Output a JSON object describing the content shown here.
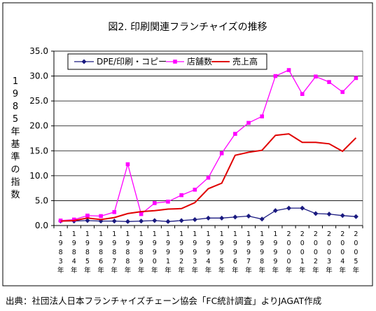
{
  "chart_data": {
    "type": "line",
    "title": "図2. 印刷関連フランチャイズの推移",
    "ylabel": "1985年基準の指数",
    "xlabel": "",
    "ylim": [
      0,
      35
    ],
    "yticks": [
      "0.0",
      "5.0",
      "10.0",
      "15.0",
      "20.0",
      "25.0",
      "30.0",
      "35.0"
    ],
    "grid": "horizontal",
    "legend_position": "top",
    "categories": [
      "1983年",
      "1984年",
      "1985年",
      "1986年",
      "1987年",
      "1988年",
      "1989年",
      "1990年",
      "1991年",
      "1992年",
      "1993年",
      "1994年",
      "1995年",
      "1996年",
      "1997年",
      "1998年",
      "1999年",
      "2000年",
      "2001年",
      "2002年",
      "2003年",
      "2004年",
      "2005年"
    ],
    "series": [
      {
        "name": "DPE/印刷・コピー",
        "color": "#1a1a80",
        "marker": "diamond",
        "values": [
          0.9,
          0.9,
          1.0,
          0.9,
          0.9,
          0.8,
          0.9,
          1.0,
          0.8,
          1.0,
          1.2,
          1.5,
          1.5,
          1.7,
          1.9,
          1.3,
          3.0,
          3.5,
          3.5,
          2.4,
          2.3,
          2.0,
          1.8
        ]
      },
      {
        "name": "店舗数",
        "color": "#ff00ff",
        "marker": "square",
        "values": [
          1.0,
          1.2,
          2.0,
          1.9,
          2.7,
          12.3,
          2.3,
          4.5,
          4.8,
          6.1,
          7.2,
          9.6,
          14.5,
          18.4,
          20.6,
          21.9,
          30.0,
          31.2,
          26.4,
          29.9,
          28.8,
          26.8,
          29.6
        ]
      },
      {
        "name": "売上高",
        "color": "#e00000",
        "marker": "none",
        "values": [
          0.9,
          1.0,
          1.5,
          1.2,
          1.6,
          2.4,
          2.8,
          3.0,
          3.3,
          3.4,
          4.6,
          7.4,
          8.5,
          14.1,
          14.7,
          15.1,
          18.1,
          18.4,
          16.7,
          16.7,
          16.4,
          14.9,
          17.6
        ]
      }
    ]
  },
  "footer": {
    "source": "出典：社団法人日本フランチャイズチェーン協会「FC統計調査」よりJAGAT作成"
  }
}
